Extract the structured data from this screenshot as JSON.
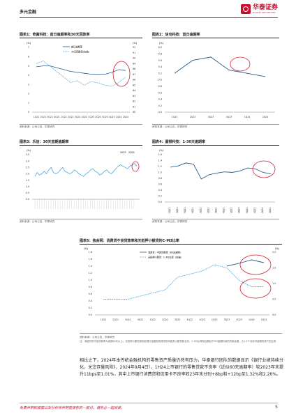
{
  "header": {
    "section": "多元金融",
    "logo_cn": "华泰证券",
    "logo_en": "HUATAI SECURITIES"
  },
  "source_text": "资料来源：公司公告，华泰研究",
  "charts": [
    {
      "title": "图表1：奇富科技：首日逾期率和30天回款率",
      "left_unit": "(%)",
      "right_unit": "(%)",
      "yticks": [
        "7",
        "6",
        "5",
        "4",
        "3",
        "2",
        "1",
        "0"
      ],
      "yticks_right": [
        "92",
        "91",
        "90",
        "89",
        "88",
        "87",
        "86",
        "85",
        "84",
        "83",
        "82",
        "81",
        "80"
      ],
      "xticks": [
        "1Q21",
        "2Q21",
        "3Q21",
        "4Q21",
        "1Q22",
        "2Q22",
        "3Q22",
        "4Q22",
        "1Q23",
        "2Q23",
        "3Q23",
        "4Q23",
        "1Q24",
        "2Q24"
      ],
      "legend": [
        "首日逾期率",
        "30天回款率(右轴)"
      ]
    },
    {
      "title": "图表2：信也科技：首日逾期率",
      "unit": "(%)",
      "yticks": [
        "6.0",
        "5.8",
        "5.6",
        "5.4",
        "5.2",
        "5.0",
        "4.8",
        "4.6",
        "4.4",
        "4.2",
        "4.0"
      ],
      "xticks": [
        "1Q23",
        "2Q23",
        "3Q23",
        "4Q23",
        "1Q24",
        "2Q24"
      ]
    },
    {
      "title": "图表3：乐信：30天首期逾期率",
      "unit": "(%)",
      "yticks": [
        "3.5",
        "3.0",
        "2.5",
        "2.0",
        "1.5",
        "1.0",
        "0.5",
        "0.0"
      ],
      "labels": [
        "2023",
        "2Q24"
      ]
    },
    {
      "title": "图表4：嘉银科技：1-30天逾期率",
      "unit": "(%)",
      "yticks": [
        "1.6",
        "1.4",
        "1.2",
        "1.0",
        "0.8",
        "0.6",
        "0.4",
        "0.2",
        "0.0"
      ],
      "xticks": [
        "1Q21",
        "2Q21",
        "3Q21",
        "4Q21",
        "1Q22",
        "2Q22",
        "3Q22",
        "4Q22",
        "1Q23",
        "2Q23",
        "3Q23",
        "4Q23",
        "1Q24",
        "2Q24"
      ]
    },
    {
      "title": "图表5：独会网：消费贷不良贷款率和无抵押小额贷的C-M3比率",
      "left_unit": "(%)",
      "right_unit": "(%)",
      "yticks": [
        "1.8",
        "1.6",
        "1.4",
        "1.2",
        "1.0",
        "0.8",
        "0.6",
        "0.4",
        "0.2",
        "0.0"
      ],
      "yticks_right": [
        "2.0",
        "1.5",
        "1.0",
        "0.5",
        "0.0"
      ],
      "xticks": [
        "1Q21",
        "2Q21",
        "3Q21",
        "4Q21",
        "1Q22",
        "2Q22",
        "3Q22",
        "4Q22",
        "1Q23",
        "2Q23",
        "3Q23",
        "4Q23",
        "1Q24",
        "2Q24"
      ],
      "legend": [
        "消费贷：不良贷款率（60天逾期）",
        "无抵押小额贷：C-M3比率（右轴）"
      ]
    }
  ],
  "chart_data": [
    {
      "type": "line",
      "title": "图表1：奇富科技：首日逾期率和30天回款率",
      "categories": [
        "1Q21",
        "2Q21",
        "3Q21",
        "4Q21",
        "1Q22",
        "2Q22",
        "3Q22",
        "4Q22",
        "1Q23",
        "2Q23",
        "3Q23",
        "4Q23",
        "1Q24",
        "2Q24"
      ],
      "series": [
        {
          "name": "首日逾期率",
          "axis": "left",
          "values": [
            4.9,
            5.0,
            5.0,
            4.8,
            4.6,
            4.4,
            4.3,
            4.2,
            4.1,
            4.1,
            4.1,
            4.3,
            4.6,
            4.5
          ]
        },
        {
          "name": "30天回款率(右轴)",
          "axis": "right",
          "values": [
            89.0,
            89.5,
            88.5,
            87.5,
            86.5,
            85.5,
            85.8,
            85.0,
            85.7,
            85.4,
            85.0,
            84.8,
            85.5,
            86.5
          ]
        }
      ],
      "ylim": [
        0,
        7
      ],
      "ylim_right": [
        80,
        92
      ]
    },
    {
      "type": "line",
      "title": "图表2：信也科技：首日逾期率",
      "categories": [
        "1Q23",
        "2Q23",
        "3Q23",
        "4Q23",
        "1Q24",
        "2Q24"
      ],
      "series": [
        {
          "name": "首日逾期率",
          "values": [
            5.2,
            5.6,
            5.7,
            5.3,
            5.2,
            5.1
          ]
        }
      ],
      "ylim": [
        4.0,
        6.0
      ]
    },
    {
      "type": "line",
      "title": "图表3：乐信：30天首期逾期率",
      "series": [
        {
          "name": "30天首期逾期率",
          "values": [
            1.8,
            2.1,
            1.9,
            2.0,
            2.2,
            2.0,
            2.3,
            2.5,
            2.1,
            2.0,
            2.1,
            2.3,
            2.5,
            2.2,
            2.1,
            2.0,
            2.1,
            2.3,
            2.2,
            2.0,
            1.9,
            1.8,
            2.0,
            2.1,
            2.3,
            2.4,
            2.2,
            2.1,
            1.9,
            2.0,
            2.2,
            2.3,
            2.1,
            2.0,
            2.2,
            2.4,
            2.6,
            2.7,
            2.6,
            2.5,
            2.4,
            2.6,
            2.7,
            2.8,
            2.6
          ]
        }
      ],
      "ylim": [
        0,
        3.5
      ]
    },
    {
      "type": "line",
      "title": "图表4：嘉银科技：1-30天逾期率",
      "categories": [
        "1Q21",
        "2Q21",
        "3Q21",
        "4Q21",
        "1Q22",
        "2Q22",
        "3Q22",
        "4Q22",
        "1Q23",
        "2Q23",
        "3Q23",
        "4Q23",
        "1Q24",
        "2Q24"
      ],
      "series": [
        {
          "name": "1-30天逾期率",
          "values": [
            1.18,
            1.22,
            1.32,
            1.28,
            0.78,
            0.92,
            0.98,
            1.02,
            1.0,
            1.05,
            1.15,
            1.12,
            1.0,
            0.95
          ]
        }
      ],
      "ylim": [
        0,
        1.6
      ]
    },
    {
      "type": "line",
      "title": "图表5：独会网：消费贷不良贷款率和无抵押小额贷的C-M3比率",
      "categories": [
        "1Q21",
        "2Q21",
        "3Q21",
        "4Q21",
        "1Q22",
        "2Q22",
        "3Q22",
        "4Q22",
        "1Q23",
        "2Q23",
        "3Q23",
        "4Q23",
        "1Q24",
        "2Q24"
      ],
      "series": [
        {
          "name": "消费贷：不良贷款率（60天逾期）",
          "axis": "left",
          "values": [
            null,
            null,
            null,
            null,
            null,
            null,
            null,
            null,
            null,
            null,
            1.4,
            1.48,
            1.58,
            1.5
          ]
        },
        {
          "name": "无抵押小额贷：C-M3比率（右轴）",
          "axis": "right",
          "values": [
            0.5,
            0.5,
            0.5,
            0.6,
            0.7,
            0.8,
            1.2,
            1.3,
            1.4,
            1.6,
            1.5,
            1.1,
            0.9,
            0.9
          ]
        }
      ],
      "ylim": [
        0,
        1.8
      ],
      "ylim_right": [
        0,
        2.0
      ]
    }
  ],
  "note": "注：消费贷的不良贷款率为逾期60天以上；无抵押小额贷款指非银行金融机构提供的消费类小额贷款业务，C-M3比率指当期处于M3逾期阶段的贷款余额，占1-3个月前可逾期的资产的比例",
  "body": "相比之下，2024年本传统金融机构的零售资产质量仍然有压力，华泰银行团队的数据显示《银行业绩持续分化，关注存量风险》，2024年9月4日），1H24上市银行的零售贷款不良率（近似60天逾期率）较2023年末提升11bps至1.01%，其中上市银行消费贷和信用卡不良率较23年末分别+8bp和+12bp至1.32%和2.26%。",
  "footer": "免责声明和披露以及分析师声明是报告的一部分，请务必一起阅读。",
  "page": "5"
}
